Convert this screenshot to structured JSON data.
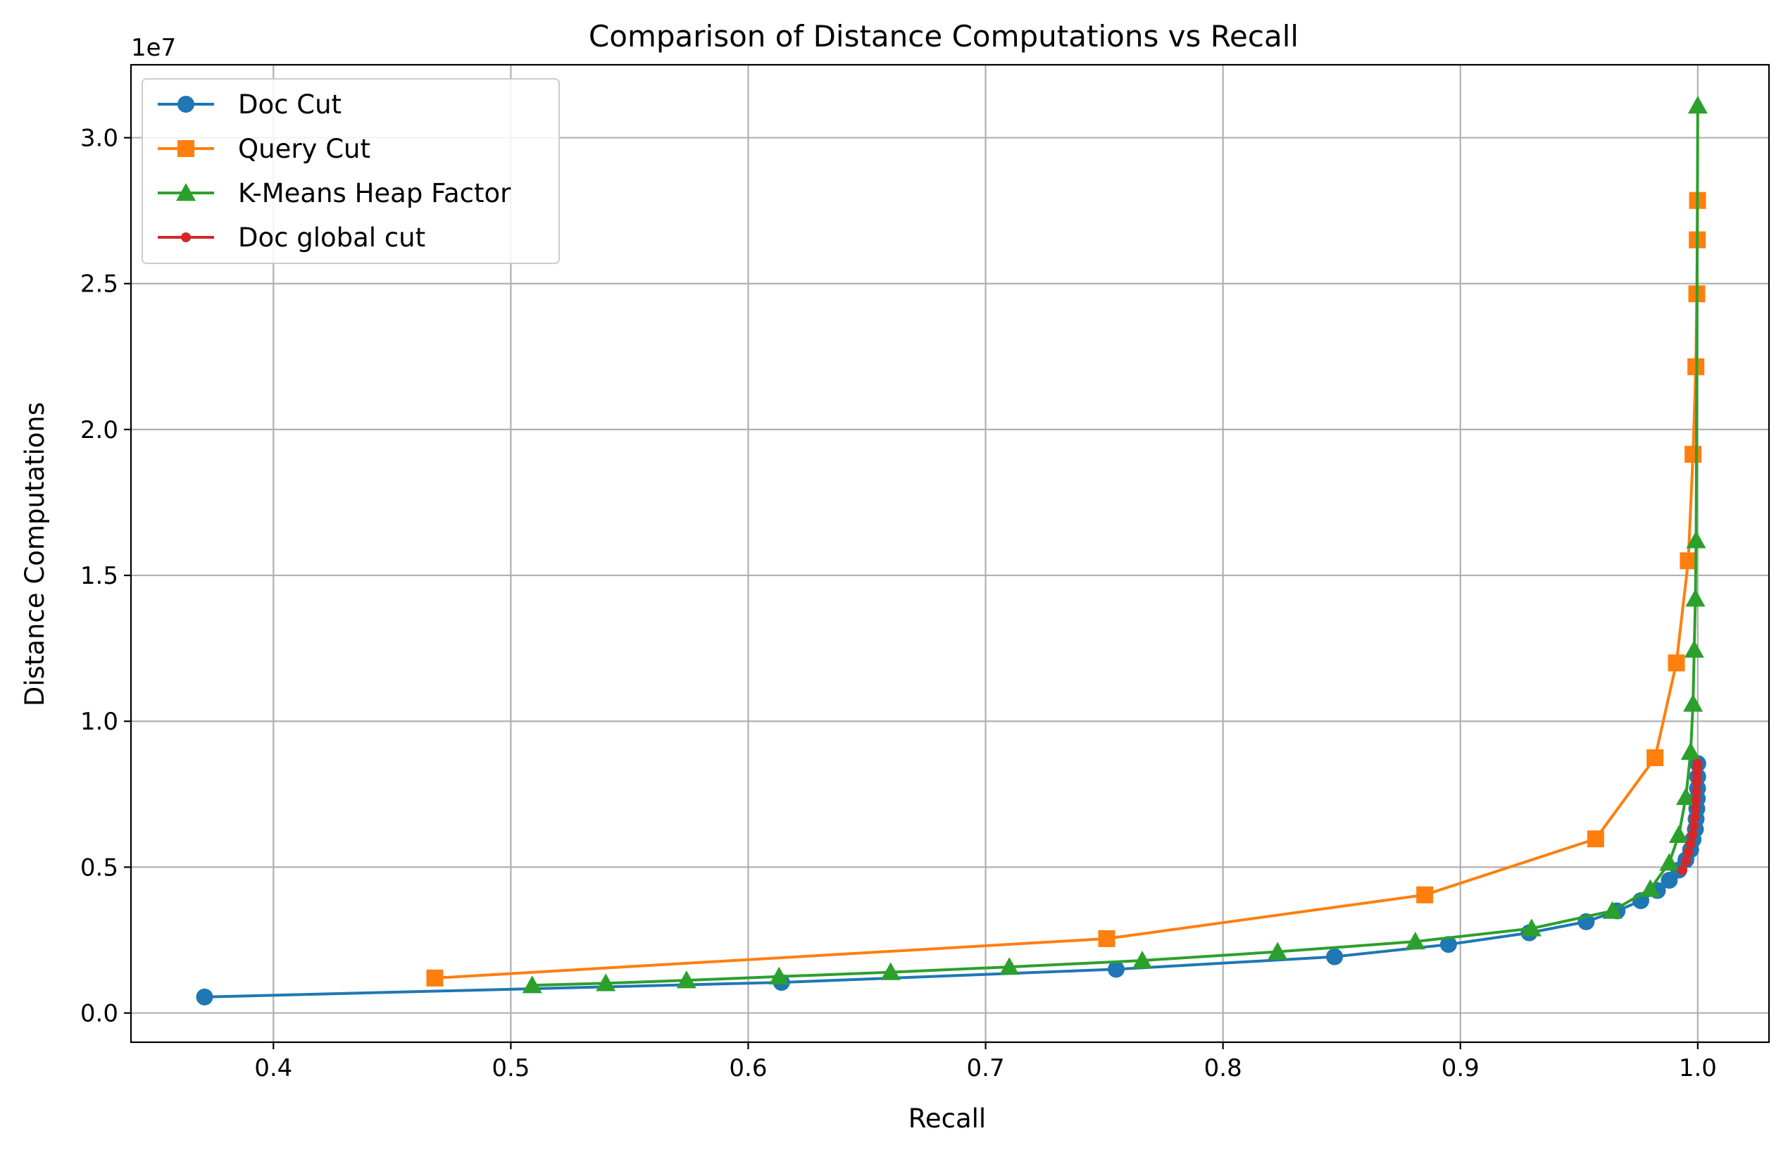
{
  "chart_data": {
    "type": "line",
    "title": "Comparison of Distance Computations vs Recall",
    "xlabel": "Recall",
    "ylabel": "Distance Computations",
    "y_offset_label": "1e7",
    "xlim": [
      0.34,
      1.03
    ],
    "ylim": [
      -0.1,
      3.25
    ],
    "y_scale_note": "values in units of 1e7",
    "grid": true,
    "legend_position": "top-left",
    "xticks": [
      "0.4",
      "0.5",
      "0.6",
      "0.7",
      "0.8",
      "0.9",
      "1.0"
    ],
    "xtick_values": [
      0.4,
      0.5,
      0.6,
      0.7,
      0.8,
      0.9,
      1.0
    ],
    "yticks": [
      "0.0",
      "0.5",
      "1.0",
      "1.5",
      "2.0",
      "2.5",
      "3.0"
    ],
    "ytick_values": [
      0.0,
      0.5,
      1.0,
      1.5,
      2.0,
      2.5,
      3.0
    ],
    "series": [
      {
        "name": "Doc Cut",
        "color": "#1f77b4",
        "marker": "circle",
        "x": [
          0.371,
          0.614,
          0.755,
          0.847,
          0.895,
          0.929,
          0.953,
          0.966,
          0.976,
          0.983,
          0.988,
          0.992,
          0.995,
          0.997,
          0.998,
          0.999,
          0.9993,
          0.9996,
          0.9998,
          0.9999,
          0.99995,
          1.0
        ],
        "y": [
          0.055,
          0.105,
          0.15,
          0.193,
          0.235,
          0.275,
          0.313,
          0.35,
          0.385,
          0.42,
          0.455,
          0.49,
          0.525,
          0.56,
          0.595,
          0.63,
          0.665,
          0.7,
          0.735,
          0.77,
          0.81,
          0.855
        ]
      },
      {
        "name": "Query Cut",
        "color": "#ff7f0e",
        "marker": "square",
        "x": [
          0.468,
          0.751,
          0.885,
          0.957,
          0.982,
          0.991,
          0.996,
          0.998,
          0.9992,
          0.9996,
          0.9998,
          0.9999
        ],
        "y": [
          0.12,
          0.255,
          0.405,
          0.597,
          0.875,
          1.2,
          1.55,
          1.915,
          2.215,
          2.465,
          2.65,
          2.785
        ]
      },
      {
        "name": "K-Means Heap Factor",
        "color": "#2ca02c",
        "marker": "triangle",
        "x": [
          0.509,
          0.54,
          0.574,
          0.613,
          0.66,
          0.71,
          0.766,
          0.823,
          0.881,
          0.93,
          0.964,
          0.98,
          0.988,
          0.992,
          0.995,
          0.997,
          0.998,
          0.9985,
          0.999,
          0.9993,
          1.0
        ],
        "y": [
          0.095,
          0.102,
          0.112,
          0.125,
          0.14,
          0.158,
          0.18,
          0.21,
          0.245,
          0.29,
          0.35,
          0.425,
          0.515,
          0.61,
          0.74,
          0.895,
          1.06,
          1.245,
          1.42,
          1.62,
          3.11
        ]
      },
      {
        "name": "Doc global cut",
        "color": "#d62728",
        "marker": "small-circle",
        "x": [
          0.9935,
          0.995,
          0.996,
          0.997,
          0.9978,
          0.9984,
          0.9988,
          0.9991,
          0.9993,
          0.9995,
          0.9996,
          0.9997,
          0.9998,
          0.9999
        ],
        "y": [
          0.49,
          0.52,
          0.55,
          0.58,
          0.61,
          0.64,
          0.67,
          0.7,
          0.73,
          0.76,
          0.79,
          0.815,
          0.84,
          0.855
        ]
      }
    ]
  }
}
